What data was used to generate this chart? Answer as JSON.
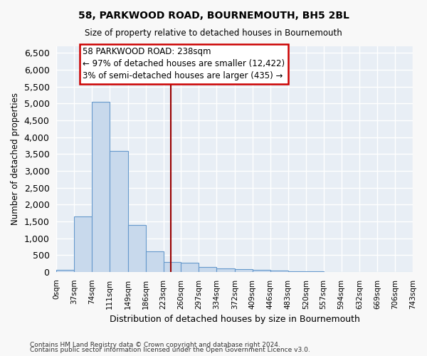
{
  "title": "58, PARKWOOD ROAD, BOURNEMOUTH, BH5 2BL",
  "subtitle": "Size of property relative to detached houses in Bournemouth",
  "xlabel": "Distribution of detached houses by size in Bournemouth",
  "ylabel": "Number of detached properties",
  "bar_color": "#c8d9ec",
  "bar_edge_color": "#6699cc",
  "bin_edges": [
    0,
    37,
    74,
    111,
    149,
    186,
    223,
    260,
    297,
    334,
    372,
    409,
    446,
    483,
    520,
    557,
    594,
    632,
    669,
    706,
    743
  ],
  "bar_heights": [
    70,
    1650,
    5060,
    3600,
    1400,
    620,
    300,
    270,
    150,
    110,
    90,
    55,
    35,
    20,
    10,
    5,
    3,
    2,
    1,
    1
  ],
  "property_size": 238,
  "vline_color": "#990000",
  "annotation_text": "58 PARKWOOD ROAD: 238sqm\n← 97% of detached houses are smaller (12,422)\n3% of semi-detached houses are larger (435) →",
  "annotation_box_color": "#ffffff",
  "annotation_box_edge": "#cc0000",
  "ylim": [
    0,
    6700
  ],
  "yticks": [
    0,
    500,
    1000,
    1500,
    2000,
    2500,
    3000,
    3500,
    4000,
    4500,
    5000,
    5500,
    6000,
    6500
  ],
  "background_color": "#dce6f0",
  "plot_bg_color": "#e8eef5",
  "grid_color": "#ffffff",
  "fig_bg_color": "#f8f8f8",
  "footer_line1": "Contains HM Land Registry data © Crown copyright and database right 2024.",
  "footer_line2": "Contains public sector information licensed under the Open Government Licence v3.0."
}
